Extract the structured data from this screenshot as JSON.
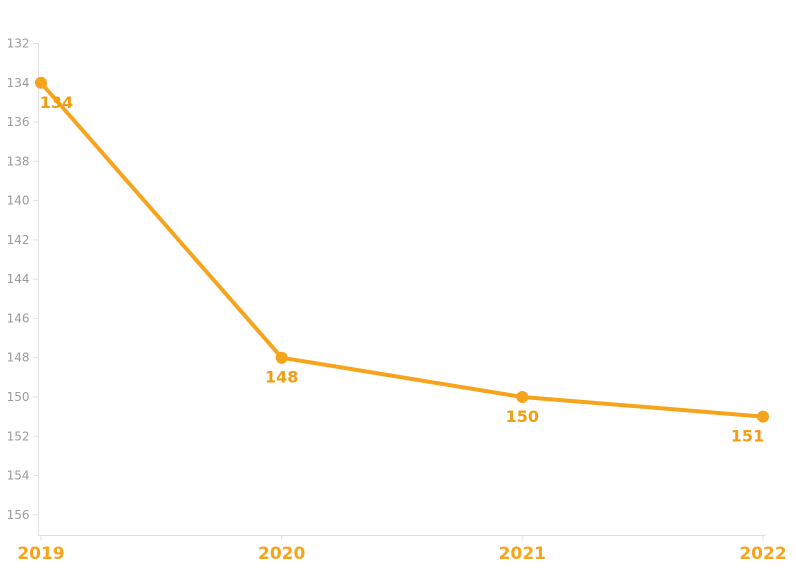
{
  "chart_data": {
    "type": "line",
    "x": [
      "2019",
      "2020",
      "2021",
      "2022"
    ],
    "series": [
      {
        "name": "series-1",
        "values": [
          134,
          148,
          150,
          151
        ]
      }
    ],
    "data_labels": [
      "134",
      "148",
      "150",
      "151"
    ],
    "y_ticks": [
      132,
      134,
      136,
      138,
      140,
      142,
      144,
      146,
      148,
      150,
      152,
      154,
      156
    ],
    "y_axis": {
      "min": 132,
      "max": 156,
      "step": 2,
      "inverted": true
    },
    "x_axis": {
      "labels": [
        "2019",
        "2020",
        "2021",
        "2022"
      ]
    },
    "grid": "off",
    "legend": "none",
    "colors": {
      "line": "#F6A41C",
      "point": "#F6A41C",
      "data_label": "#F29D13",
      "x_label": "#F6A41C",
      "y_label": "#9B9B9B",
      "axis": "#E2E2E2",
      "background": "#FFFFFF"
    }
  }
}
